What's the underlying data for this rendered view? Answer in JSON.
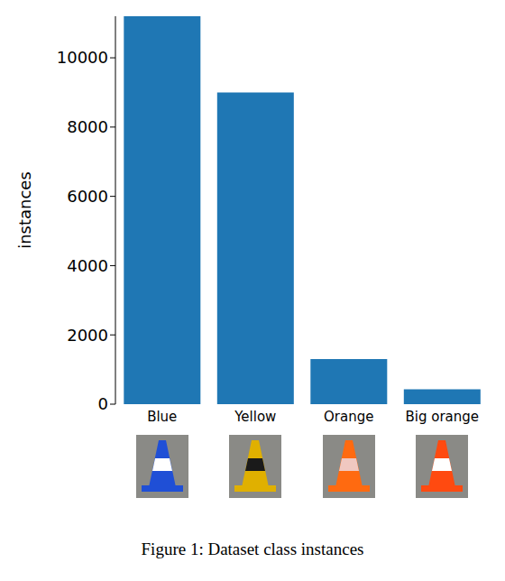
{
  "chart_data": {
    "type": "bar",
    "title": "Figure 1: Dataset class instances",
    "y_label": "instances",
    "categories": [
      "Blue",
      "Yellow",
      "Orange",
      "Big orange"
    ],
    "values": [
      11200,
      9000,
      1300,
      430
    ],
    "color": "#1f77b4",
    "ylim": [
      0,
      11200
    ],
    "yticks": [
      0,
      2000,
      4000,
      6000,
      8000,
      10000
    ],
    "grid": false
  }
}
